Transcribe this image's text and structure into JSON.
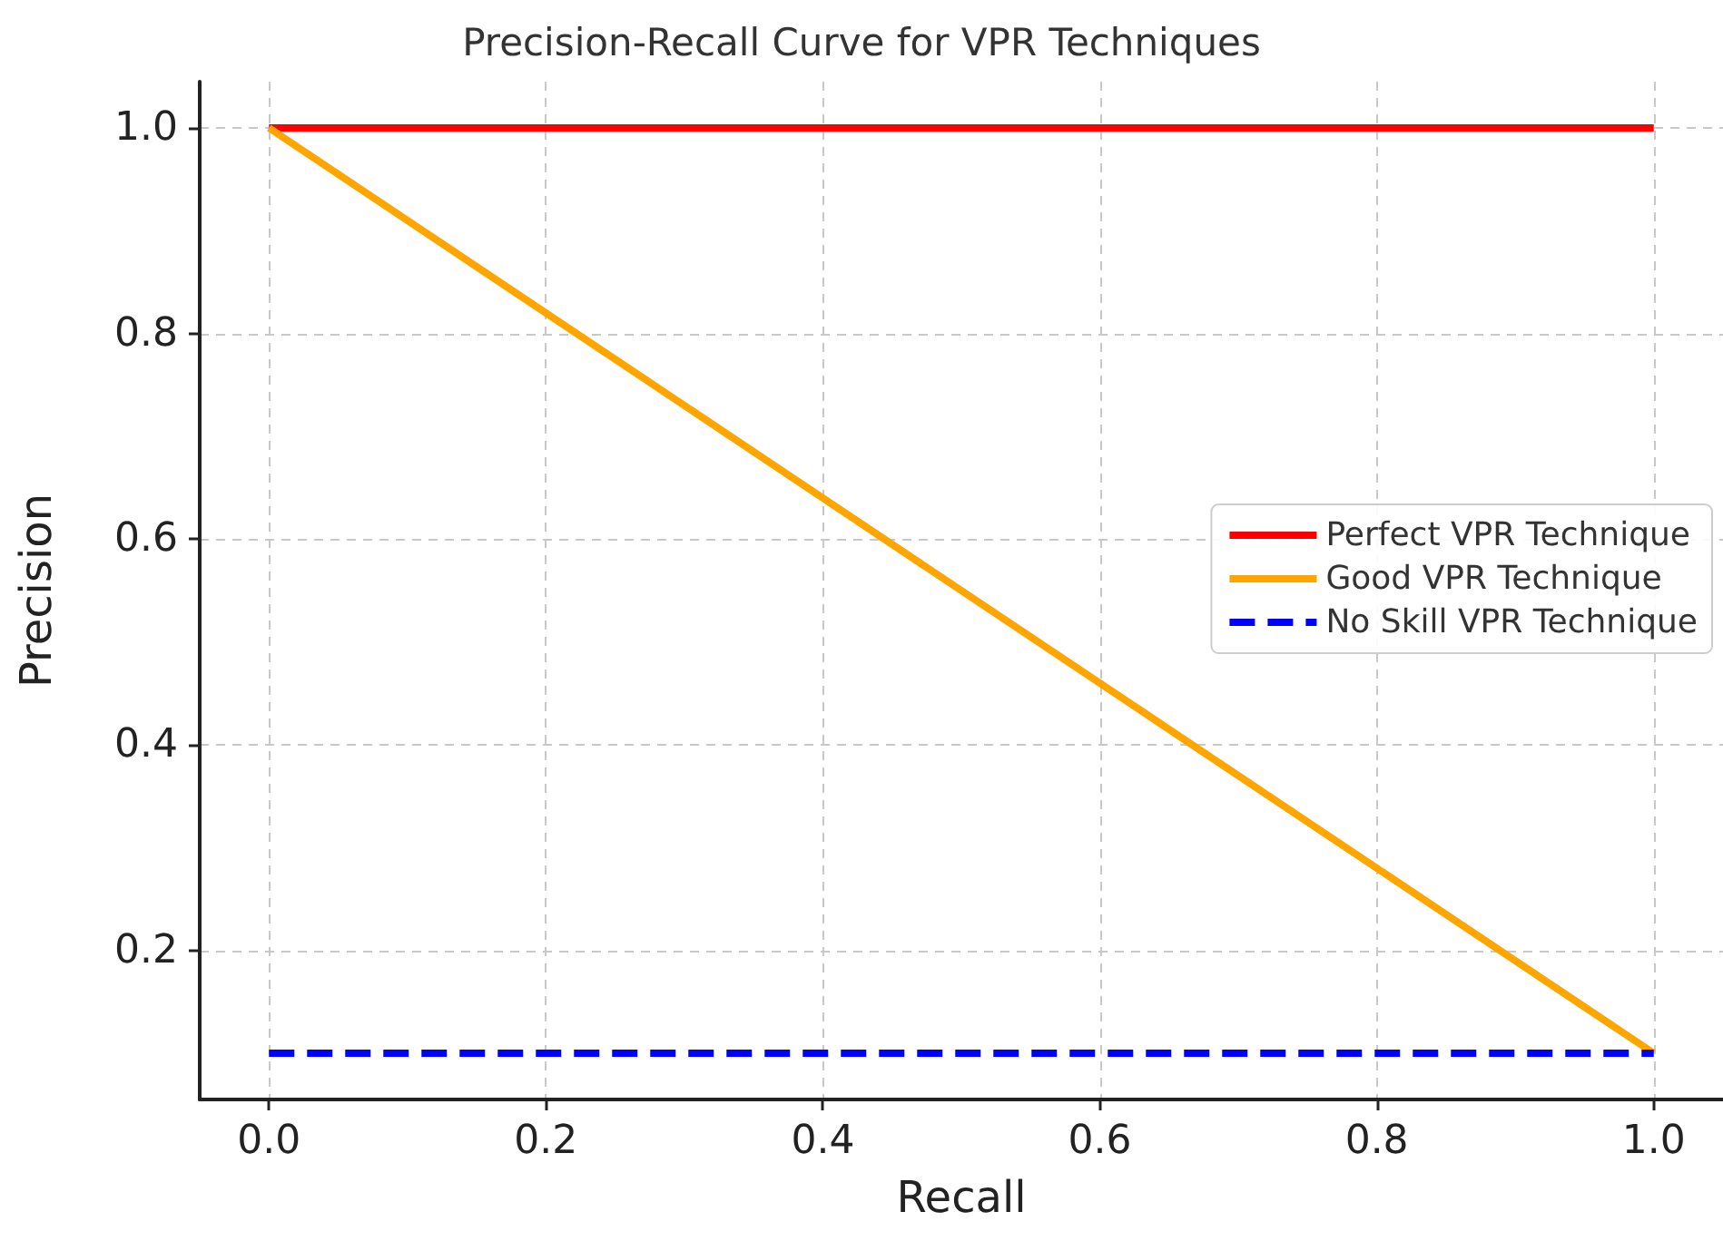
{
  "chart_data": {
    "type": "line",
    "title": "Precision-Recall Curve for VPR Techniques",
    "xlabel": "Recall",
    "ylabel": "Precision",
    "xlim": [
      -0.05,
      1.05
    ],
    "ylim": [
      0.055,
      1.045
    ],
    "xticks": [
      {
        "value": 0,
        "label": "0.0"
      },
      0.2,
      0.4,
      0.6,
      0.8,
      {
        "value": 1,
        "label": "1.0"
      }
    ],
    "yticks": [
      0.2,
      0.4,
      0.6,
      0.8,
      {
        "value": 1,
        "label": "1.0"
      }
    ],
    "x": [
      0,
      1
    ],
    "grid": true,
    "legend": "right",
    "marker": "none",
    "line_style": "solid",
    "series": [
      {
        "name": "Perfect VPR Technique",
        "color": "#ff0000",
        "values": [
          1,
          1
        ]
      },
      {
        "name": "Good VPR Technique",
        "color": "#ffa500",
        "values": [
          1,
          0.1
        ]
      },
      {
        "name": "No Skill VPR Technique",
        "color": "#0000ff",
        "values": [
          0.1,
          0.1
        ],
        "line_style": "dashed"
      }
    ]
  }
}
